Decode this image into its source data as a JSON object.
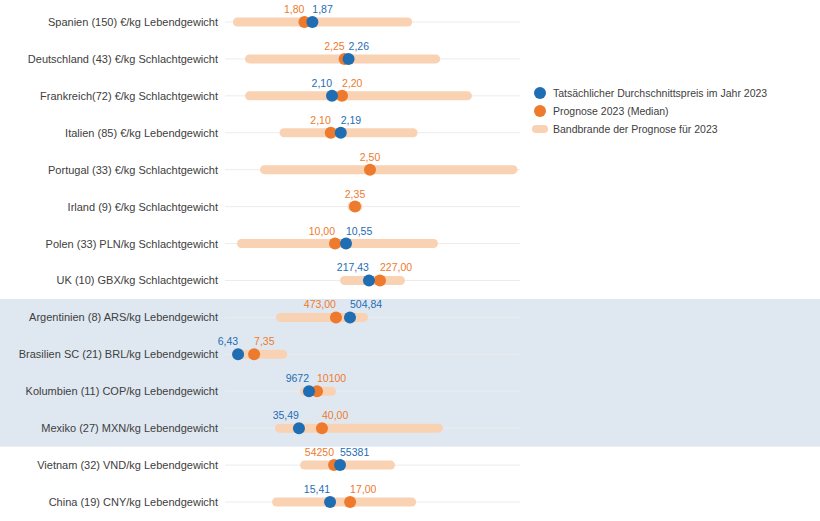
{
  "chart_data": {
    "type": "dot",
    "orientation": "horizontal",
    "data_labels": true,
    "tick_labels": "y",
    "legend": "right",
    "categories": [
      "Spanien (150) €/kg Lebendgewicht",
      "Deutschland (43) €/kg Schlachtgewicht",
      "Frankreich(72) €/kg Schlachtgewicht",
      "Italien (85) €/kg Lebendgewicht",
      "Portugal (33) €/kg Schlachtgewicht",
      "Irland (9) €/kg Schlachtgewicht",
      "Polen (33) PLN/kg Schlachtgewicht",
      "UK (10) GBX/kg Schlachtgewicht",
      "Argentinien (8) ARS/kg Lebendgewicht",
      "Brasilien SC (21) BRL/kg Lebendgewicht",
      "Kolumbien (11) COP/kg Lebendgewicht",
      "Mexiko (27) MXN/kg Lebendgewicht",
      "Vietnam (32) VND/kg Lebendgewicht",
      "China (19) CNY/kg Lebendgewicht"
    ],
    "xlim": [
      [
        1.1,
        3.7
      ],
      [
        1.95,
        2.69
      ],
      [
        1.03,
        3.98
      ],
      [
        1.15,
        3.8
      ],
      [
        1.92,
        3.1
      ],
      [
        1.83,
        3.01
      ],
      [
        4.5,
        19.25
      ],
      [
        92,
        349
      ],
      [
        221,
        891
      ],
      [
        5.68,
        22.6
      ],
      [
        5178,
        20960
      ],
      [
        21,
        78.8
      ],
      [
        33700,
        89300
      ],
      [
        7.06,
        30.5
      ]
    ],
    "series": [
      {
        "name": "Tatsächlicher Durchschnittspreis im Jahr 2023",
        "color": "#1f6db3",
        "marker": "circle",
        "values": [
          1.87,
          2.26,
          2.1,
          2.19,
          null,
          null,
          10.55,
          217.43,
          504.84,
          6.43,
          9672,
          35.49,
          55381,
          15.41
        ],
        "value_labels": [
          "1,87",
          "2,26",
          "2,10",
          "2,19",
          null,
          null,
          "10,55",
          "217,43",
          "504,84",
          "6,43",
          "9672",
          "35,49",
          "55381",
          "15,41"
        ]
      },
      {
        "name": "Prognose 2023 (Median)",
        "color": "#ee7a2d",
        "marker": "circle",
        "values": [
          1.8,
          2.25,
          2.2,
          2.1,
          2.5,
          2.35,
          10,
          227,
          473,
          7.35,
          10100,
          40,
          54250,
          17
        ],
        "value_labels": [
          "1,80",
          "2,25",
          "2,20",
          "2,10",
          "2,50",
          "2,35",
          "10,00",
          "227,00",
          "473,00",
          "7,35",
          "10100",
          "40,00",
          "54250",
          "17,00"
        ]
      }
    ],
    "band": {
      "name": "Bandbrande der Prognose für 2023",
      "color": "#f9d2b3",
      "low": [
        1.17,
        2.0,
        1.23,
        1.64,
        2.06,
        2.32,
        5.1,
        192.2,
        336.8,
        6.08,
        9190,
        30.79,
        47841,
        10.8
      ],
      "high": [
        2.75,
        2.49,
        3.5,
        2.88,
        3.09,
        2.38,
        15.15,
        248.75,
        545.7,
        9.25,
        11117,
        63.7,
        65748,
        22.25
      ]
    }
  }
}
